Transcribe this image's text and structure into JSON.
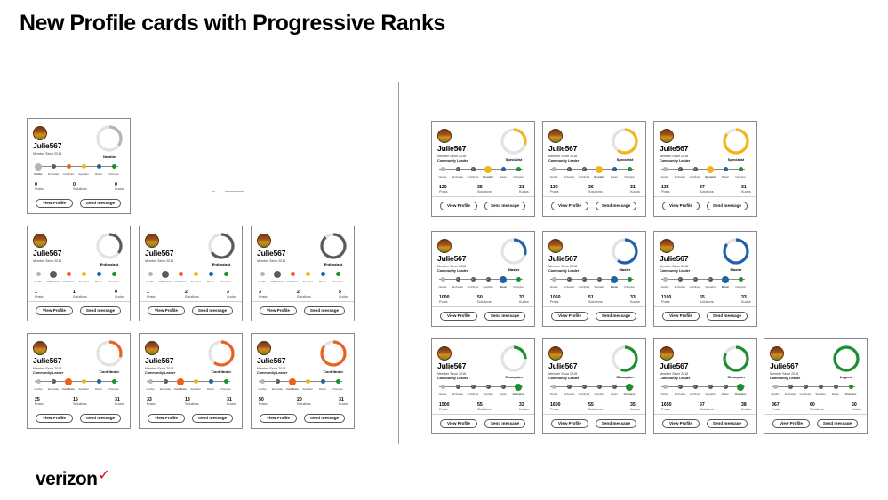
{
  "slide": {
    "title": "New Profile cards with Progressive Ranks",
    "brand": "verizon",
    "brand_mark": "✓"
  },
  "colors": {
    "newbie": "#b5b5b5",
    "enthusiast": "#5a5a5a",
    "contributor": "#e8641e",
    "specialist": "#f2b61a",
    "master": "#1f62a6",
    "champion": "#1b8f2f",
    "track": "#888888"
  },
  "rank_steps": [
    "Newbie",
    "Enthusiast",
    "Contributor",
    "Specialist",
    "Master",
    "Champion"
  ],
  "labels": {
    "posts": "Posts",
    "solutions": "Solutions",
    "kudos": "Kudos",
    "view_profile": "View Profile",
    "send_message": "Send message",
    "member_since": "Member Since 2018",
    "community_leader": "Community Leader"
  },
  "cards": [
    {
      "username": "Julie567",
      "rank": "Newbie",
      "rank_label": "Newbie",
      "progress": 0.35,
      "posts": "0",
      "solutions": "0",
      "kudos": "0",
      "leader": false,
      "member_since": "Member Since 2018"
    },
    {
      "username": "Julie567",
      "rank": "Enthusiast",
      "rank_label": "Enthusiast",
      "progress": 0.35,
      "posts": "1",
      "solutions": "1",
      "kudos": "0",
      "leader": false,
      "member_since": "Member Since 2018"
    },
    {
      "username": "Julie567",
      "rank": "Enthusiast",
      "rank_label": "Enthusiast",
      "progress": 0.65,
      "posts": "1",
      "solutions": "2",
      "kudos": "3",
      "leader": false,
      "member_since": "Member Since 2018"
    },
    {
      "username": "Julie567",
      "rank": "Enthusiast",
      "rank_label": "Enthusiast",
      "progress": 0.88,
      "posts": "3",
      "solutions": "2",
      "kudos": "5",
      "leader": false,
      "member_since": "Member Since 2018"
    },
    {
      "username": "Julie567",
      "rank": "Contributor",
      "rank_label": "Contributor",
      "progress": 0.3,
      "posts": "25",
      "solutions": "15",
      "kudos": "31",
      "leader": true,
      "member_since": "Member Since 2018"
    },
    {
      "username": "Julie567",
      "rank": "Contributor",
      "rank_label": "Contributor",
      "progress": 0.6,
      "posts": "33",
      "solutions": "18",
      "kudos": "31",
      "leader": true,
      "member_since": "Member Since 2018"
    },
    {
      "username": "Julie567",
      "rank": "Contributor",
      "rank_label": "Contributor",
      "progress": 0.85,
      "posts": "50",
      "solutions": "20",
      "kudos": "31",
      "leader": true,
      "member_since": "Member Since 2018"
    },
    {
      "username": "Julie567",
      "rank": "Specialist",
      "rank_label": "Specialist",
      "progress": 0.3,
      "posts": "120",
      "solutions": "35",
      "kudos": "31",
      "leader": true,
      "member_since": "Member Since 2018"
    },
    {
      "username": "Julie567",
      "rank": "Specialist",
      "rank_label": "Specialist",
      "progress": 0.6,
      "posts": "130",
      "solutions": "36",
      "kudos": "31",
      "leader": true,
      "member_since": "Member Since 2018"
    },
    {
      "username": "Julie567",
      "rank": "Specialist",
      "rank_label": "Specialist",
      "progress": 0.85,
      "posts": "135",
      "solutions": "37",
      "kudos": "31",
      "leader": true,
      "member_since": "Member Since 2018"
    },
    {
      "username": "Julie567",
      "rank": "Master",
      "rank_label": "Master",
      "progress": 0.3,
      "posts": "1000",
      "solutions": "50",
      "kudos": "33",
      "leader": true,
      "member_since": "Member Since 2018"
    },
    {
      "username": "Julie567",
      "rank": "Master",
      "rank_label": "Master",
      "progress": 0.6,
      "posts": "1050",
      "solutions": "51",
      "kudos": "33",
      "leader": true,
      "member_since": "Member Since 2018"
    },
    {
      "username": "Julie567",
      "rank": "Master",
      "rank_label": "Master",
      "progress": 0.85,
      "posts": "1100",
      "solutions": "55",
      "kudos": "33",
      "leader": true,
      "member_since": "Member Since 2018"
    },
    {
      "username": "Julie567",
      "rank": "Champion",
      "rank_label": "Champion",
      "progress": 0.25,
      "posts": "1500",
      "solutions": "55",
      "kudos": "33",
      "leader": true,
      "member_since": "Member Since 2018"
    },
    {
      "username": "Julie567",
      "rank": "Champion",
      "rank_label": "Champion",
      "progress": 0.55,
      "posts": "1600",
      "solutions": "55",
      "kudos": "35",
      "leader": true,
      "member_since": "Member Since 2018"
    },
    {
      "username": "Julie567",
      "rank": "Champion",
      "rank_label": "Champion",
      "progress": 0.82,
      "posts": "1650",
      "solutions": "57",
      "kudos": "38",
      "leader": true,
      "member_since": "Member Since 2018"
    },
    {
      "username": "Julie567",
      "rank": "Champion",
      "rank_label": "Legend",
      "progress": 1.0,
      "posts": "367",
      "solutions": "60",
      "kudos": "50",
      "leader": true,
      "member_since": "Member Since 2018"
    }
  ]
}
